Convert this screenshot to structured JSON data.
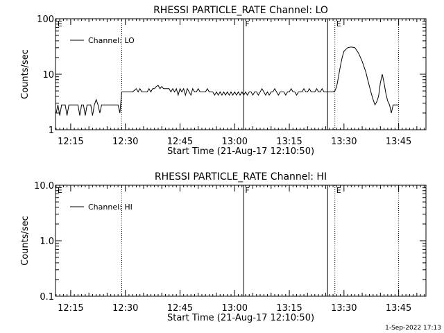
{
  "footer": {
    "timestamp": "1-Sep-2022 17:13"
  },
  "chart_data": [
    {
      "type": "line",
      "scale": "log",
      "title": "RHESSI PARTICLE_RATE Channel: LO",
      "xlabel": "Start Time (21-Aug-17 12:10:50)",
      "ylabel": "Counts/sec",
      "x_unit": "minutes",
      "xlim": [
        "12:10:50",
        "13:52:30"
      ],
      "ylim": [
        1,
        100
      ],
      "x_ticks": [
        "12:15",
        "12:30",
        "12:45",
        "13:00",
        "13:15",
        "13:30",
        "13:45"
      ],
      "y_ticks": [
        {
          "v": 1,
          "label": "1"
        },
        {
          "v": 10,
          "label": "10"
        },
        {
          "v": 100,
          "label": "100"
        }
      ],
      "legend": {
        "position": "top-left",
        "entries": [
          "Channel: LO"
        ]
      },
      "markers": [
        {
          "time": "12:11:00",
          "label": "E",
          "style": "none"
        },
        {
          "time": "12:29:00",
          "label": "",
          "style": "dotted"
        },
        {
          "time": "13:02:30",
          "label": "F",
          "style": "solid"
        },
        {
          "time": "13:25:30",
          "label": "",
          "style": "solid"
        },
        {
          "time": "13:27:30",
          "label": "E",
          "style": "dotted"
        },
        {
          "time": "13:45:00",
          "label": "",
          "style": "dotted"
        }
      ],
      "series": [
        {
          "name": "Channel: LO",
          "points": [
            [
              "12:11:00",
              2.0
            ],
            [
              "12:11:30",
              2.8
            ],
            [
              "12:12:00",
              1.8
            ],
            [
              "12:12:30",
              2.8
            ],
            [
              "12:13:00",
              2.8
            ],
            [
              "12:13:30",
              2.8
            ],
            [
              "12:14:00",
              1.8
            ],
            [
              "12:14:30",
              2.8
            ],
            [
              "12:15:00",
              2.8
            ],
            [
              "12:15:30",
              2.8
            ],
            [
              "12:16:00",
              2.8
            ],
            [
              "12:16:30",
              2.8
            ],
            [
              "12:17:00",
              2.8
            ],
            [
              "12:17:30",
              1.8
            ],
            [
              "12:18:00",
              2.8
            ],
            [
              "12:18:30",
              2.8
            ],
            [
              "12:19:00",
              1.8
            ],
            [
              "12:19:30",
              2.8
            ],
            [
              "12:20:00",
              2.8
            ],
            [
              "12:20:30",
              2.8
            ],
            [
              "12:21:00",
              1.8
            ],
            [
              "12:21:30",
              2.8
            ],
            [
              "12:22:00",
              3.5
            ],
            [
              "12:22:30",
              2.8
            ],
            [
              "12:23:00",
              2.0
            ],
            [
              "12:23:30",
              2.8
            ],
            [
              "12:24:00",
              2.8
            ],
            [
              "12:24:30",
              2.8
            ],
            [
              "12:25:00",
              2.8
            ],
            [
              "12:25:30",
              2.8
            ],
            [
              "12:26:00",
              2.8
            ],
            [
              "12:26:30",
              2.8
            ],
            [
              "12:27:00",
              2.8
            ],
            [
              "12:27:30",
              2.8
            ],
            [
              "12:28:00",
              2.8
            ],
            [
              "12:28:30",
              2.0
            ],
            [
              "12:29:00",
              4.8
            ],
            [
              "12:29:30",
              4.8
            ],
            [
              "12:30:00",
              4.8
            ],
            [
              "12:30:30",
              4.8
            ],
            [
              "12:31:00",
              4.8
            ],
            [
              "12:32:00",
              4.8
            ],
            [
              "12:33:00",
              5.5
            ],
            [
              "12:33:30",
              4.8
            ],
            [
              "12:34:00",
              5.5
            ],
            [
              "12:34:30",
              4.8
            ],
            [
              "12:35:00",
              4.8
            ],
            [
              "12:36:00",
              4.8
            ],
            [
              "12:36:30",
              5.5
            ],
            [
              "12:37:00",
              4.8
            ],
            [
              "12:37:30",
              5.5
            ],
            [
              "12:38:00",
              5.5
            ],
            [
              "12:38:30",
              6.0
            ],
            [
              "12:39:00",
              6.3
            ],
            [
              "12:39:30",
              5.5
            ],
            [
              "12:40:00",
              6.0
            ],
            [
              "12:40:30",
              5.5
            ],
            [
              "12:41:00",
              5.5
            ],
            [
              "12:42:00",
              5.5
            ],
            [
              "12:42:30",
              4.8
            ],
            [
              "12:43:00",
              5.5
            ],
            [
              "12:43:30",
              4.8
            ],
            [
              "12:44:00",
              5.5
            ],
            [
              "12:44:30",
              4.2
            ],
            [
              "12:45:00",
              5.5
            ],
            [
              "12:45:30",
              4.8
            ],
            [
              "12:46:00",
              5.5
            ],
            [
              "12:46:30",
              4.2
            ],
            [
              "12:47:00",
              5.5
            ],
            [
              "12:47:30",
              4.8
            ],
            [
              "12:48:00",
              4.2
            ],
            [
              "12:48:30",
              5.5
            ],
            [
              "12:49:00",
              4.8
            ],
            [
              "12:49:30",
              4.8
            ],
            [
              "12:50:00",
              5.5
            ],
            [
              "12:50:30",
              4.8
            ],
            [
              "12:51:00",
              4.8
            ],
            [
              "12:52:00",
              4.8
            ],
            [
              "12:52:30",
              5.5
            ],
            [
              "12:53:00",
              4.8
            ],
            [
              "12:54:00",
              4.8
            ],
            [
              "12:54:30",
              4.2
            ],
            [
              "12:55:00",
              4.8
            ],
            [
              "12:55:30",
              4.2
            ],
            [
              "12:56:00",
              4.8
            ],
            [
              "12:56:30",
              4.2
            ],
            [
              "12:57:00",
              4.8
            ],
            [
              "12:57:30",
              4.2
            ],
            [
              "12:58:00",
              4.8
            ],
            [
              "12:58:30",
              4.2
            ],
            [
              "12:59:00",
              4.8
            ],
            [
              "12:59:30",
              4.2
            ],
            [
              "13:00:00",
              4.8
            ],
            [
              "13:00:30",
              4.2
            ],
            [
              "13:01:00",
              4.8
            ],
            [
              "13:01:30",
              4.2
            ],
            [
              "13:02:00",
              4.8
            ],
            [
              "13:02:30",
              4.2
            ],
            [
              "13:03:00",
              4.8
            ],
            [
              "13:03:30",
              4.2
            ],
            [
              "13:04:00",
              4.8
            ],
            [
              "13:04:30",
              4.8
            ],
            [
              "13:05:00",
              4.2
            ],
            [
              "13:05:30",
              4.8
            ],
            [
              "13:06:00",
              4.8
            ],
            [
              "13:06:30",
              4.2
            ],
            [
              "13:07:00",
              4.8
            ],
            [
              "13:07:30",
              5.5
            ],
            [
              "13:08:00",
              4.8
            ],
            [
              "13:08:30",
              4.2
            ],
            [
              "13:09:00",
              4.8
            ],
            [
              "13:09:30",
              4.2
            ],
            [
              "13:10:00",
              4.8
            ],
            [
              "13:10:30",
              4.8
            ],
            [
              "13:11:00",
              5.5
            ],
            [
              "13:11:30",
              4.8
            ],
            [
              "13:12:00",
              4.2
            ],
            [
              "13:12:30",
              4.8
            ],
            [
              "13:13:00",
              4.8
            ],
            [
              "13:13:30",
              4.8
            ],
            [
              "13:14:00",
              4.2
            ],
            [
              "13:14:30",
              4.8
            ],
            [
              "13:15:00",
              4.8
            ],
            [
              "13:15:30",
              5.5
            ],
            [
              "13:16:00",
              4.8
            ],
            [
              "13:16:30",
              4.8
            ],
            [
              "13:17:00",
              4.2
            ],
            [
              "13:17:30",
              4.8
            ],
            [
              "13:18:00",
              4.8
            ],
            [
              "13:18:30",
              4.8
            ],
            [
              "13:19:00",
              5.5
            ],
            [
              "13:19:30",
              4.8
            ],
            [
              "13:20:00",
              4.8
            ],
            [
              "13:20:30",
              5.5
            ],
            [
              "13:21:00",
              4.8
            ],
            [
              "13:21:30",
              4.8
            ],
            [
              "13:22:00",
              4.8
            ],
            [
              "13:22:30",
              5.5
            ],
            [
              "13:23:00",
              4.8
            ],
            [
              "13:23:30",
              4.8
            ],
            [
              "13:24:00",
              5.5
            ],
            [
              "13:24:30",
              4.8
            ],
            [
              "13:25:00",
              4.8
            ],
            [
              "13:26:00",
              4.8
            ],
            [
              "13:27:00",
              4.8
            ],
            [
              "13:27:30",
              5.0
            ],
            [
              "13:28:00",
              6.0
            ],
            [
              "13:28:30",
              9.0
            ],
            [
              "13:29:00",
              14.0
            ],
            [
              "13:29:30",
              20.0
            ],
            [
              "13:30:00",
              26.0
            ],
            [
              "13:31:00",
              30.0
            ],
            [
              "13:32:00",
              31.0
            ],
            [
              "13:33:00",
              30.0
            ],
            [
              "13:34:00",
              24.0
            ],
            [
              "13:35:00",
              17.0
            ],
            [
              "13:36:00",
              11.0
            ],
            [
              "13:36:30",
              8.0
            ],
            [
              "13:37:00",
              6.0
            ],
            [
              "13:37:30",
              4.5
            ],
            [
              "13:38:00",
              3.5
            ],
            [
              "13:38:30",
              2.8
            ],
            [
              "13:39:00",
              3.2
            ],
            [
              "13:39:30",
              4.0
            ],
            [
              "13:40:00",
              7.0
            ],
            [
              "13:40:30",
              10.0
            ],
            [
              "13:41:00",
              7.0
            ],
            [
              "13:41:30",
              4.5
            ],
            [
              "13:42:00",
              3.3
            ],
            [
              "13:42:30",
              2.8
            ],
            [
              "13:43:00",
              2.0
            ],
            [
              "13:43:30",
              2.8
            ],
            [
              "13:44:00",
              2.8
            ],
            [
              "13:45:00",
              2.8
            ]
          ]
        }
      ]
    },
    {
      "type": "line",
      "scale": "log",
      "title": "RHESSI PARTICLE_RATE Channel: HI",
      "xlabel": "Start Time (21-Aug-17 12:10:50)",
      "ylabel": "Counts/sec",
      "x_unit": "minutes",
      "xlim": [
        "12:10:50",
        "13:52:30"
      ],
      "ylim": [
        0.1,
        10
      ],
      "x_ticks": [
        "12:15",
        "12:30",
        "12:45",
        "13:00",
        "13:15",
        "13:30",
        "13:45"
      ],
      "y_ticks": [
        {
          "v": 0.1,
          "label": "0.1"
        },
        {
          "v": 1,
          "label": "1.0"
        },
        {
          "v": 10,
          "label": "10.0"
        }
      ],
      "legend": {
        "position": "top-left",
        "entries": [
          "Channel: HI"
        ]
      },
      "markers": [
        {
          "time": "12:11:00",
          "label": "E",
          "style": "none"
        },
        {
          "time": "12:29:00",
          "label": "",
          "style": "dotted"
        },
        {
          "time": "13:02:30",
          "label": "F",
          "style": "solid"
        },
        {
          "time": "13:25:30",
          "label": "",
          "style": "solid"
        },
        {
          "time": "13:27:30",
          "label": "E",
          "style": "dotted"
        },
        {
          "time": "13:45:00",
          "label": "",
          "style": "dotted"
        }
      ],
      "series": [
        {
          "name": "Channel: HI",
          "points": []
        }
      ]
    }
  ]
}
